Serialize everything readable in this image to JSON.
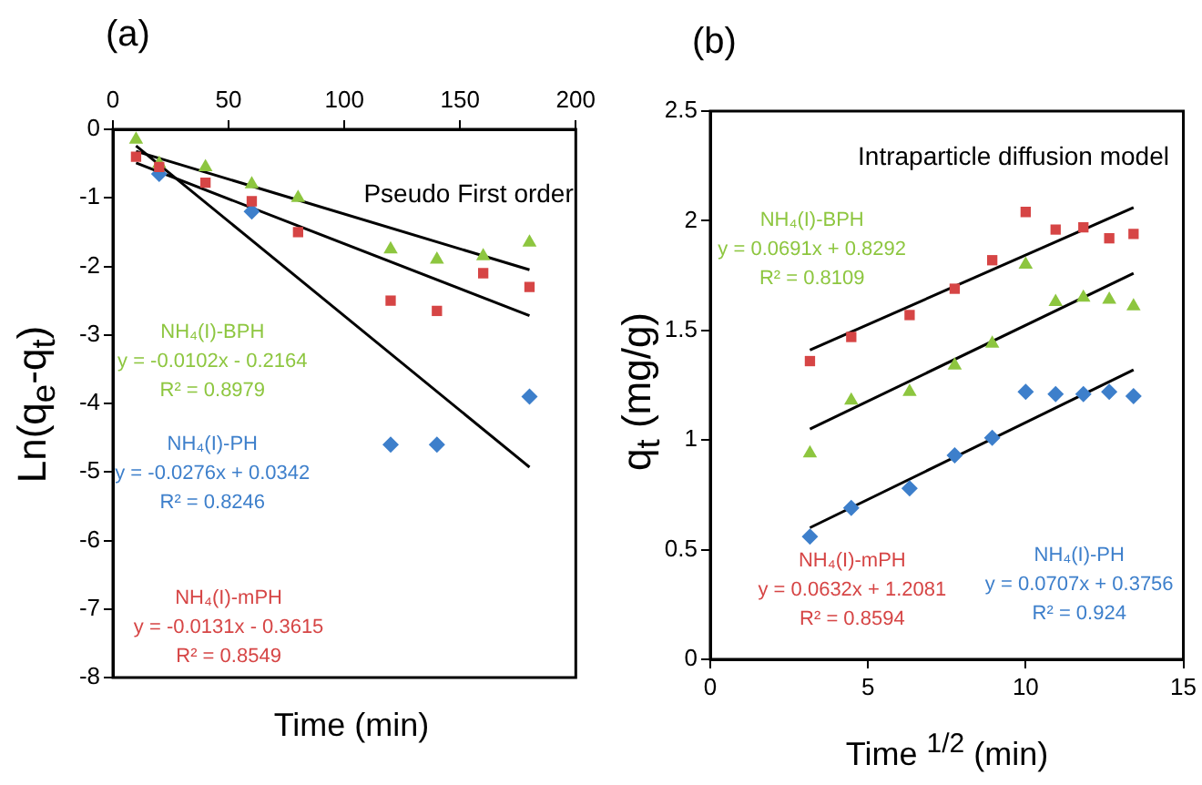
{
  "chart_data": [
    {
      "type": "scatter",
      "title": "(a)",
      "subtitle": "Pseudo First order",
      "xlabel": "Time (min)",
      "ylabel": "Ln(q$_{e}$-q$_{t}$)",
      "x": [
        10,
        20,
        40,
        60,
        80,
        120,
        140,
        160,
        180
      ],
      "xlim": [
        0,
        200
      ],
      "xticks": [
        0,
        50,
        100,
        150,
        200
      ],
      "ylim": [
        -8,
        0
      ],
      "yticks": [
        -8,
        -7,
        -6,
        -5,
        -4,
        -3,
        -2,
        -1,
        0
      ],
      "grid": false,
      "legend": false,
      "series": [
        {
          "name": "NH₄(I)-BPH",
          "color": "#8dc63f",
          "marker": "triangle",
          "values": [
            -0.15,
            -0.5,
            -0.55,
            -0.8,
            -1.0,
            -1.75,
            -1.9,
            -1.85,
            -1.65
          ]
        },
        {
          "name": "NH₄(I)-PH",
          "color": "#3d7fcb",
          "marker": "diamond",
          "values": [
            null,
            -0.65,
            null,
            -1.2,
            null,
            -4.6,
            -4.6,
            null,
            -3.9
          ]
        },
        {
          "name": "NH₄(I)-mPH",
          "color": "#d64545",
          "marker": "square",
          "values": [
            -0.4,
            -0.55,
            -0.78,
            -1.05,
            -1.5,
            -2.5,
            -2.65,
            -2.1,
            -2.3
          ]
        },
        {
          "type": "line",
          "color": "#000000",
          "marker": "none",
          "x": [
            10,
            180
          ],
          "values": [
            -0.32,
            -2.05
          ]
        },
        {
          "type": "line",
          "color": "#000000",
          "marker": "none",
          "x": [
            10,
            180
          ],
          "values": [
            -0.24,
            -4.93
          ]
        },
        {
          "type": "line",
          "color": "#000000",
          "marker": "none",
          "x": [
            10,
            180
          ],
          "values": [
            -0.49,
            -2.72
          ]
        }
      ],
      "annotations": [
        "y = -0.0102x - 0.2164",
        "R² = 0.8979",
        "y = -0.0276x + 0.0342",
        "R² = 0.8246",
        "y = -0.0131x - 0.3615",
        "R² = 0.8549"
      ]
    },
    {
      "type": "scatter",
      "title": "(b)",
      "subtitle": "Intraparticle diffusion model",
      "xlabel": "Time $^{1/2}$ (min)",
      "ylabel": "q$_{t}$ (mg/g)",
      "x": [
        3.16,
        4.47,
        6.32,
        7.75,
        8.94,
        10,
        10.95,
        11.83,
        12.65,
        13.42
      ],
      "xlim": [
        0,
        15
      ],
      "xticks": [
        0,
        5,
        10,
        15
      ],
      "ylim": [
        0,
        2.5
      ],
      "yticks": [
        0,
        0.5,
        1,
        1.5,
        2,
        2.5
      ],
      "grid": false,
      "legend": false,
      "series": [
        {
          "name": "NH₄(I)-BPH",
          "color": "#8dc63f",
          "marker": "triangle",
          "values": [
            0.94,
            1.18,
            1.22,
            1.34,
            1.44,
            1.8,
            1.63,
            1.65,
            1.64,
            1.61
          ]
        },
        {
          "name": "NH₄(I)-mPH",
          "color": "#d64545",
          "marker": "square",
          "values": [
            1.36,
            1.47,
            1.57,
            1.69,
            1.82,
            2.04,
            1.96,
            1.97,
            1.92,
            1.94
          ]
        },
        {
          "name": "NH₄(I)-PH",
          "color": "#3d7fcb",
          "marker": "diamond",
          "values": [
            0.56,
            0.69,
            0.78,
            0.93,
            1.01,
            1.22,
            1.21,
            1.21,
            1.22,
            1.2
          ]
        },
        {
          "type": "line",
          "color": "#000000",
          "marker": "none",
          "x": [
            3.16,
            13.42
          ],
          "values": [
            1.05,
            1.76
          ]
        },
        {
          "type": "line",
          "color": "#000000",
          "marker": "none",
          "x": [
            3.16,
            13.42
          ],
          "values": [
            1.41,
            2.06
          ]
        },
        {
          "type": "line",
          "color": "#000000",
          "marker": "none",
          "x": [
            3.16,
            13.42
          ],
          "values": [
            0.6,
            1.32
          ]
        }
      ],
      "annotations": [
        "y = 0.0691x + 0.8292",
        "R² = 0.8109",
        "y = 0.0632x + 1.2081",
        "R² = 0.8594",
        "y = 0.0707x + 0.3756",
        "R² = 0.924"
      ]
    }
  ]
}
